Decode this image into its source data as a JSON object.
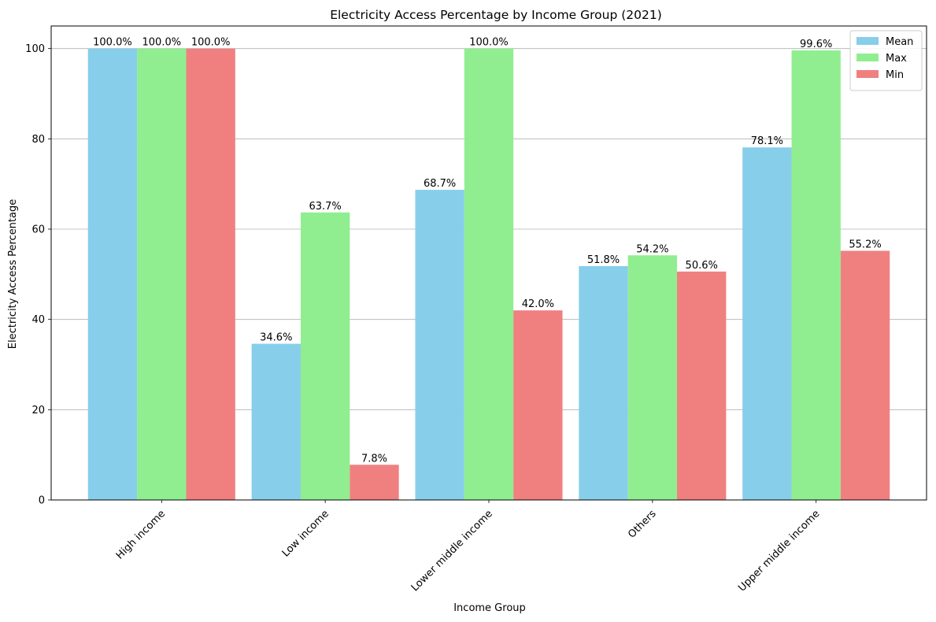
{
  "chart_data": {
    "type": "bar",
    "title": "Electricity Access Percentage by Income Group (2021)",
    "xlabel": "Income Group",
    "ylabel": "Electricity Access Percentage",
    "categories": [
      "High income",
      "Low income",
      "Lower middle income",
      "Others",
      "Upper middle income"
    ],
    "series": [
      {
        "name": "Mean",
        "color": "#87ceeb",
        "values": [
          100.0,
          34.6,
          68.7,
          51.8,
          78.1
        ],
        "labels": [
          "100.0%",
          "34.6%",
          "68.7%",
          "51.8%",
          "78.1%"
        ]
      },
      {
        "name": "Max",
        "color": "#90ee90",
        "values": [
          100.0,
          63.7,
          100.0,
          54.2,
          99.6
        ],
        "labels": [
          "100.0%",
          "63.7%",
          "100.0%",
          "54.2%",
          "99.6%"
        ]
      },
      {
        "name": "Min",
        "color": "#f08080",
        "values": [
          100.0,
          7.8,
          42.0,
          50.6,
          55.2
        ],
        "labels": [
          "100.0%",
          "7.8%",
          "42.0%",
          "50.6%",
          "55.2%"
        ]
      }
    ],
    "ylim": [
      0,
      105
    ],
    "yticks": [
      0,
      20,
      40,
      60,
      80,
      100
    ],
    "ytick_labels": [
      "0",
      "20",
      "40",
      "60",
      "80",
      "100"
    ],
    "grid": "y",
    "legend_position": "top-right"
  }
}
